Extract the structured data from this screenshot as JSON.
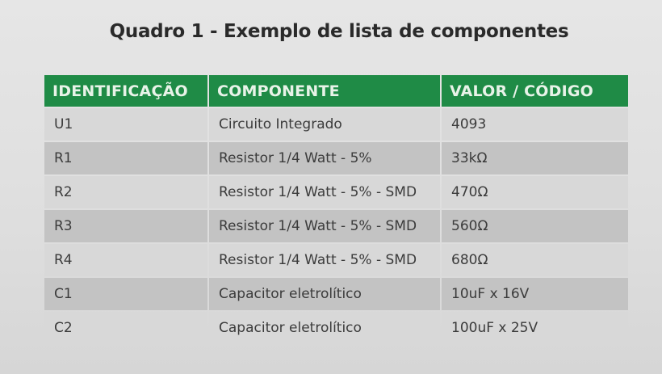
{
  "title": "Quadro 1 - Exemplo de lista de componentes",
  "colors": {
    "header_bg": "#1f8b46",
    "header_text": "#e8f3e8",
    "row_light": "#d8d8d8",
    "row_dark": "#c3c3c3"
  },
  "table": {
    "headers": [
      "IDENTIFICAÇÃO",
      "COMPONENTE",
      "VALOR / CÓDIGO"
    ],
    "rows": [
      [
        "U1",
        "Circuito Integrado",
        "4093"
      ],
      [
        "R1",
        "Resistor 1/4 Watt - 5%",
        "33kΩ"
      ],
      [
        "R2",
        "Resistor 1/4 Watt - 5% - SMD",
        "470Ω"
      ],
      [
        "R3",
        "Resistor 1/4 Watt - 5% - SMD",
        "560Ω"
      ],
      [
        "R4",
        "Resistor 1/4 Watt - 5% - SMD",
        "680Ω"
      ],
      [
        "C1",
        "Capacitor eletrolítico",
        "10uF  x  16V"
      ],
      [
        "C2",
        "Capacitor eletrolítico",
        "100uF  x  25V"
      ]
    ]
  }
}
